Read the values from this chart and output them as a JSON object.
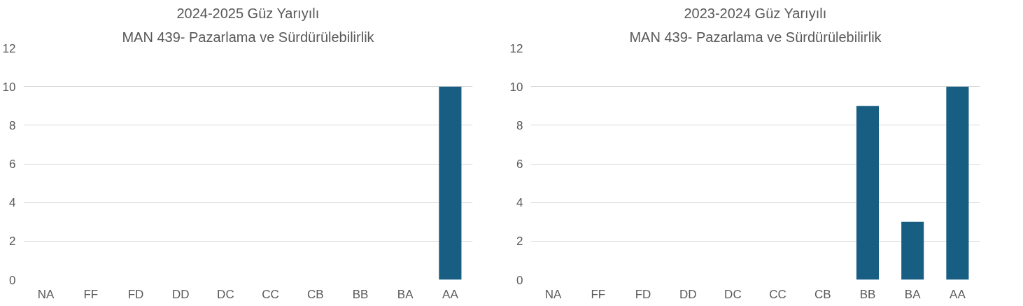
{
  "chart_data": [
    {
      "type": "bar",
      "title": "2024-2025 Güz Yarıyılı",
      "subtitle": "MAN 439- Pazarlama ve Sürdürülebilirlik",
      "categories": [
        "NA",
        "FF",
        "FD",
        "DD",
        "DC",
        "CC",
        "CB",
        "BB",
        "BA",
        "AA"
      ],
      "values": [
        0,
        0,
        0,
        0,
        0,
        0,
        0,
        0,
        0,
        10
      ],
      "color": "#175e82",
      "ylim": [
        0,
        12
      ],
      "yticks": [
        0,
        2,
        4,
        6,
        8,
        10,
        12
      ],
      "grid": "y"
    },
    {
      "type": "bar",
      "title": "2023-2024 Güz Yarıyılı",
      "subtitle": "MAN 439- Pazarlama ve Sürdürülebilirlik",
      "categories": [
        "NA",
        "FF",
        "FD",
        "DD",
        "DC",
        "CC",
        "CB",
        "BB",
        "BA",
        "AA"
      ],
      "values": [
        0,
        0,
        0,
        0,
        0,
        0,
        0,
        9,
        3,
        10
      ],
      "color": "#175e82",
      "ylim": [
        0,
        12
      ],
      "yticks": [
        0,
        2,
        4,
        6,
        8,
        10,
        12
      ],
      "grid": "y"
    }
  ]
}
